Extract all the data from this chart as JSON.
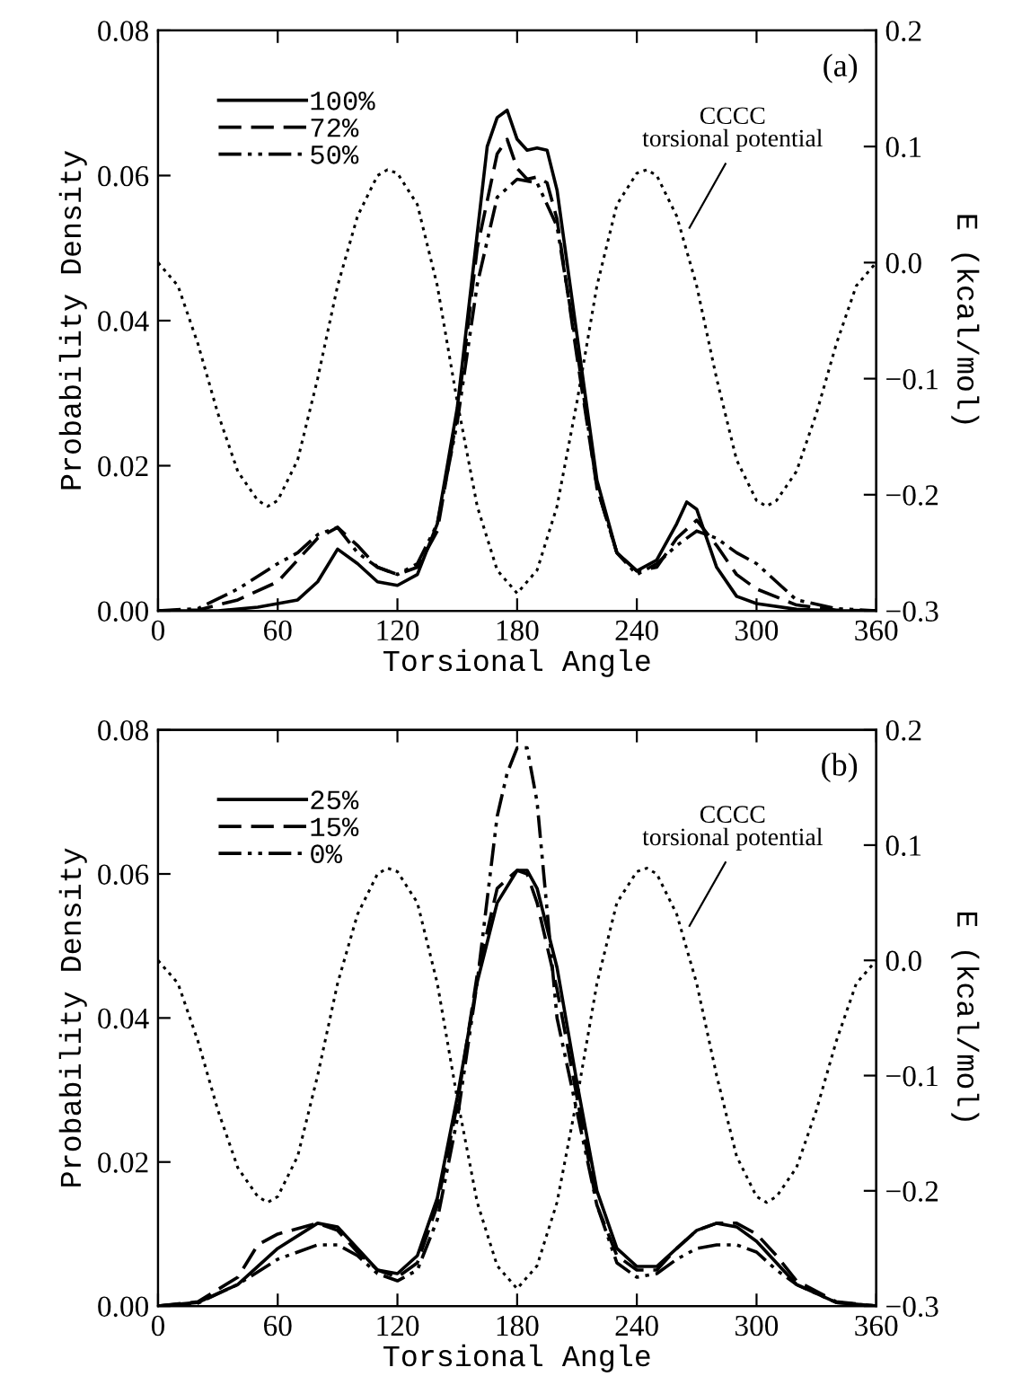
{
  "chart_data": [
    {
      "type": "line",
      "xlabel": "Torsional Angle",
      "ylabel": "Probability Density",
      "y2label": "E (kcal/mol)",
      "legend": "top left",
      "xlim": [
        0,
        360
      ],
      "xticks": [
        0,
        60,
        120,
        180,
        240,
        300,
        360
      ],
      "ylim": [
        0,
        0.08
      ],
      "yticks": [
        {
          "value": 0,
          "label": "0.00"
        },
        {
          "value": 0.02,
          "label": "0.02"
        },
        {
          "value": 0.04,
          "label": "0.04"
        },
        {
          "value": 0.06,
          "label": "0.06"
        },
        {
          "value": 0.08,
          "label": "0.08"
        }
      ],
      "y2lim": [
        -0.3,
        0.2
      ],
      "y2ticks": [
        {
          "value": -0.3,
          "label": "−0.3"
        },
        {
          "value": -0.2,
          "label": "−0.2"
        },
        {
          "value": -0.1,
          "label": "−0.1"
        },
        {
          "value": 0,
          "label": "0.0"
        },
        {
          "value": 0.1,
          "label": "0.1"
        },
        {
          "value": 0.2,
          "label": "0.2"
        }
      ],
      "annotations": [
        "(a)",
        "CCCC\ntorsional potential"
      ],
      "series": [
        {
          "name": "100%",
          "color": "#000000",
          "line_style": "solid",
          "x": [
            0,
            30,
            50,
            70,
            80,
            90,
            100,
            110,
            120,
            130,
            140,
            150,
            160,
            165,
            170,
            175,
            180,
            185,
            190,
            195,
            200,
            210,
            220,
            230,
            240,
            250,
            260,
            265,
            270,
            280,
            290,
            300,
            320,
            340,
            360
          ],
          "values": [
            0,
            0,
            0.0005,
            0.0015,
            0.004,
            0.0085,
            0.0065,
            0.004,
            0.0035,
            0.005,
            0.012,
            0.028,
            0.052,
            0.064,
            0.068,
            0.069,
            0.065,
            0.0635,
            0.0638,
            0.0635,
            0.058,
            0.038,
            0.018,
            0.008,
            0.0055,
            0.007,
            0.012,
            0.015,
            0.014,
            0.006,
            0.002,
            0.001,
            0.0002,
            0,
            0
          ]
        },
        {
          "name": "72%",
          "color": "#000000",
          "line_style": "dashed",
          "x": [
            0,
            20,
            40,
            60,
            80,
            90,
            100,
            110,
            120,
            130,
            140,
            150,
            160,
            170,
            175,
            180,
            185,
            190,
            195,
            200,
            210,
            220,
            230,
            240,
            250,
            260,
            270,
            280,
            290,
            300,
            320,
            340,
            360
          ],
          "values": [
            0,
            0.0001,
            0.0015,
            0.004,
            0.01,
            0.0115,
            0.009,
            0.006,
            0.005,
            0.006,
            0.011,
            0.027,
            0.05,
            0.063,
            0.065,
            0.061,
            0.0595,
            0.0598,
            0.059,
            0.054,
            0.035,
            0.017,
            0.008,
            0.0055,
            0.006,
            0.01,
            0.0125,
            0.009,
            0.005,
            0.003,
            0.0008,
            0.0001,
            0
          ]
        },
        {
          "name": "50%",
          "color": "#000000",
          "line_style": "dashdotdot",
          "x": [
            0,
            20,
            40,
            60,
            70,
            80,
            90,
            100,
            110,
            120,
            130,
            140,
            150,
            160,
            170,
            180,
            190,
            200,
            210,
            220,
            230,
            240,
            250,
            260,
            270,
            280,
            290,
            300,
            310,
            320,
            340,
            360
          ],
          "values": [
            0,
            0.0003,
            0.003,
            0.0065,
            0.008,
            0.0105,
            0.0115,
            0.008,
            0.006,
            0.005,
            0.0065,
            0.012,
            0.026,
            0.045,
            0.057,
            0.0595,
            0.059,
            0.053,
            0.036,
            0.017,
            0.008,
            0.005,
            0.0065,
            0.009,
            0.011,
            0.01,
            0.008,
            0.0065,
            0.004,
            0.0015,
            0.0003,
            0
          ]
        },
        {
          "axis": "y2",
          "color": "#000000",
          "line_style": "dotted",
          "x": [
            0,
            10,
            20,
            30,
            40,
            50,
            55,
            60,
            70,
            80,
            90,
            100,
            110,
            115,
            120,
            130,
            140,
            150,
            160,
            170,
            180,
            190,
            200,
            210,
            220,
            230,
            240,
            245,
            250,
            260,
            270,
            280,
            290,
            300,
            305,
            310,
            320,
            330,
            340,
            350,
            360
          ],
          "values": [
            0,
            -0.02,
            -0.07,
            -0.13,
            -0.18,
            -0.205,
            -0.21,
            -0.205,
            -0.17,
            -0.1,
            -0.02,
            0.04,
            0.075,
            0.08,
            0.077,
            0.05,
            -0.02,
            -0.12,
            -0.21,
            -0.265,
            -0.285,
            -0.265,
            -0.21,
            -0.12,
            -0.02,
            0.05,
            0.077,
            0.08,
            0.075,
            0.04,
            -0.02,
            -0.1,
            -0.17,
            -0.205,
            -0.21,
            -0.205,
            -0.18,
            -0.13,
            -0.07,
            -0.02,
            0
          ]
        }
      ]
    },
    {
      "type": "line",
      "xlabel": "Torsional Angle",
      "ylabel": "Probability Density",
      "y2label": "E (kcal/mol)",
      "legend": "top left",
      "xlim": [
        0,
        360
      ],
      "xticks": [
        0,
        60,
        120,
        180,
        240,
        300,
        360
      ],
      "ylim": [
        0,
        0.08
      ],
      "yticks": [
        {
          "value": 0,
          "label": "0.00"
        },
        {
          "value": 0.02,
          "label": "0.02"
        },
        {
          "value": 0.04,
          "label": "0.04"
        },
        {
          "value": 0.06,
          "label": "0.06"
        },
        {
          "value": 0.08,
          "label": "0.08"
        }
      ],
      "y2lim": [
        -0.3,
        0.2
      ],
      "y2ticks": [
        {
          "value": -0.3,
          "label": "−0.3"
        },
        {
          "value": -0.2,
          "label": "−0.2"
        },
        {
          "value": -0.1,
          "label": "−0.1"
        },
        {
          "value": 0,
          "label": "0.0"
        },
        {
          "value": 0.1,
          "label": "0.1"
        },
        {
          "value": 0.2,
          "label": "0.2"
        }
      ],
      "annotations": [
        "(b)",
        "CCCC\ntorsional potential"
      ],
      "series": [
        {
          "name": "25%",
          "color": "#000000",
          "line_style": "solid",
          "x": [
            0,
            20,
            40,
            60,
            80,
            90,
            100,
            110,
            120,
            130,
            140,
            150,
            160,
            170,
            180,
            185,
            190,
            200,
            210,
            220,
            230,
            240,
            250,
            260,
            270,
            280,
            290,
            300,
            310,
            320,
            340,
            360
          ],
          "values": [
            0,
            0.0005,
            0.003,
            0.008,
            0.0115,
            0.011,
            0.008,
            0.005,
            0.0045,
            0.007,
            0.015,
            0.029,
            0.045,
            0.056,
            0.0605,
            0.0605,
            0.058,
            0.047,
            0.031,
            0.016,
            0.008,
            0.0055,
            0.0055,
            0.008,
            0.0105,
            0.0115,
            0.011,
            0.009,
            0.006,
            0.003,
            0.0005,
            0
          ]
        },
        {
          "name": "15%",
          "color": "#000000",
          "line_style": "dashed",
          "x": [
            0,
            20,
            40,
            50,
            60,
            80,
            90,
            100,
            110,
            120,
            130,
            140,
            150,
            160,
            170,
            180,
            185,
            190,
            200,
            210,
            220,
            230,
            240,
            250,
            260,
            270,
            280,
            290,
            300,
            310,
            320,
            340,
            360
          ],
          "values": [
            0,
            0.0006,
            0.004,
            0.0085,
            0.01,
            0.0115,
            0.0105,
            0.0075,
            0.005,
            0.004,
            0.006,
            0.014,
            0.028,
            0.046,
            0.058,
            0.0605,
            0.06,
            0.056,
            0.044,
            0.029,
            0.014,
            0.007,
            0.005,
            0.005,
            0.008,
            0.0105,
            0.0115,
            0.0115,
            0.01,
            0.007,
            0.0035,
            0.0006,
            0
          ]
        },
        {
          "name": "0%",
          "color": "#000000",
          "line_style": "dashdotdot",
          "x": [
            0,
            20,
            40,
            60,
            80,
            90,
            100,
            110,
            120,
            130,
            140,
            150,
            160,
            170,
            175,
            180,
            185,
            190,
            200,
            210,
            220,
            230,
            240,
            250,
            260,
            270,
            280,
            290,
            300,
            310,
            320,
            340,
            360
          ],
          "values": [
            0,
            0.0004,
            0.003,
            0.0065,
            0.0085,
            0.0085,
            0.007,
            0.0045,
            0.0035,
            0.005,
            0.012,
            0.026,
            0.045,
            0.068,
            0.074,
            0.0775,
            0.0775,
            0.07,
            0.04,
            0.027,
            0.014,
            0.006,
            0.004,
            0.0045,
            0.0065,
            0.008,
            0.0085,
            0.0085,
            0.0075,
            0.005,
            0.003,
            0.0005,
            0
          ]
        },
        {
          "axis": "y2",
          "color": "#000000",
          "line_style": "dotted",
          "x": [
            0,
            10,
            20,
            30,
            40,
            50,
            55,
            60,
            70,
            80,
            90,
            100,
            110,
            115,
            120,
            130,
            140,
            150,
            160,
            170,
            180,
            190,
            200,
            210,
            220,
            230,
            240,
            245,
            250,
            260,
            270,
            280,
            290,
            300,
            305,
            310,
            320,
            330,
            340,
            350,
            360
          ],
          "values": [
            0,
            -0.02,
            -0.07,
            -0.13,
            -0.18,
            -0.205,
            -0.21,
            -0.205,
            -0.17,
            -0.1,
            -0.02,
            0.04,
            0.075,
            0.08,
            0.077,
            0.05,
            -0.02,
            -0.12,
            -0.21,
            -0.265,
            -0.285,
            -0.265,
            -0.21,
            -0.12,
            -0.02,
            0.05,
            0.077,
            0.08,
            0.075,
            0.04,
            -0.02,
            -0.1,
            -0.17,
            -0.205,
            -0.21,
            -0.205,
            -0.18,
            -0.13,
            -0.07,
            -0.02,
            0
          ]
        }
      ]
    }
  ]
}
